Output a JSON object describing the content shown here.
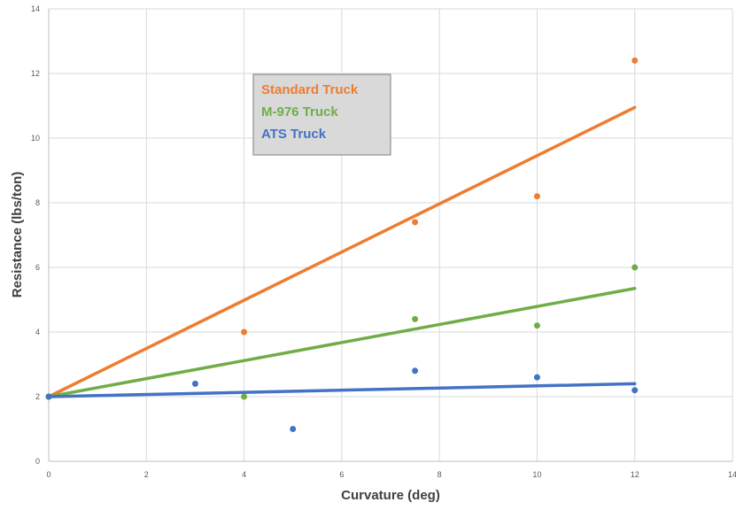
{
  "chart_data": {
    "type": "scatter",
    "title": "",
    "xlabel": "Curvature (deg)",
    "ylabel": "Resistance (lbs/ton)",
    "xlim": [
      0,
      14
    ],
    "ylim": [
      0,
      14
    ],
    "x_ticks": [
      0,
      2,
      4,
      6,
      8,
      10,
      12,
      14
    ],
    "y_ticks": [
      0,
      2,
      4,
      6,
      8,
      10,
      12,
      14
    ],
    "x_tick_labels": [
      "0",
      "2",
      "4",
      "6",
      "8",
      "10",
      "12",
      "14"
    ],
    "y_tick_labels": [
      "0",
      "2",
      "4",
      "6",
      "8",
      "10",
      "12",
      "14"
    ],
    "grid": true,
    "legend_position": "top-left",
    "series": [
      {
        "name": "Standard Truck",
        "color": "#ED7D31",
        "points": [
          [
            0,
            2.0
          ],
          [
            4,
            4.0
          ],
          [
            7.5,
            7.4
          ],
          [
            10,
            8.2
          ],
          [
            12,
            12.4
          ]
        ],
        "trendline": [
          [
            0,
            2.0
          ],
          [
            12,
            10.95
          ]
        ]
      },
      {
        "name": "M-976 Truck",
        "color": "#70AD47",
        "points": [
          [
            0,
            2.0
          ],
          [
            4,
            2.0
          ],
          [
            7.5,
            4.4
          ],
          [
            10,
            4.2
          ],
          [
            12,
            6.0
          ]
        ],
        "trendline": [
          [
            0,
            2.0
          ],
          [
            12,
            5.35
          ]
        ]
      },
      {
        "name": "ATS Truck",
        "color": "#4472C4",
        "points": [
          [
            0,
            2.0
          ],
          [
            3,
            2.4
          ],
          [
            5,
            1.0
          ],
          [
            7.5,
            2.8
          ],
          [
            10,
            2.6
          ],
          [
            12,
            2.2
          ]
        ],
        "trendline": [
          [
            0,
            2.0
          ],
          [
            12,
            2.4
          ]
        ]
      }
    ]
  }
}
